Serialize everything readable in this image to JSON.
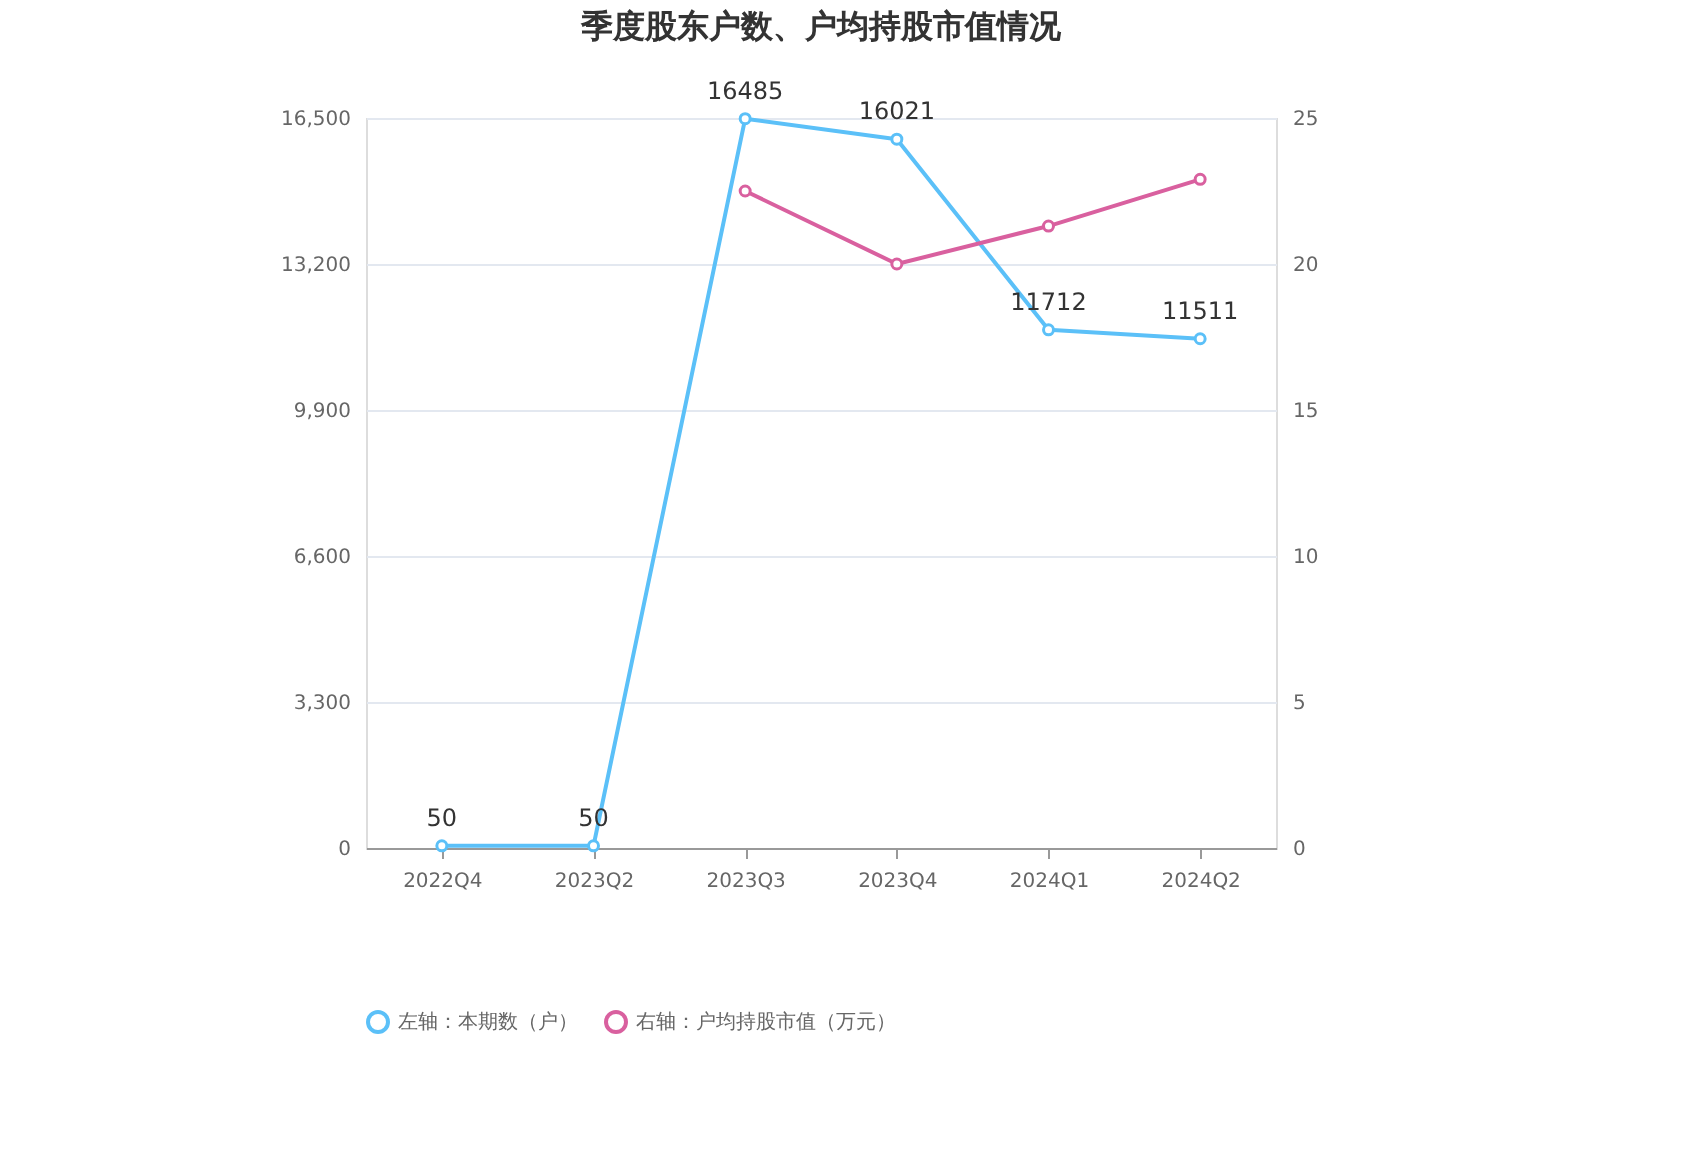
{
  "chart_data": {
    "type": "line",
    "title": "季度股东户数、户均持股市值情况",
    "categories": [
      "2022Q4",
      "2023Q2",
      "2023Q3",
      "2023Q4",
      "2024Q1",
      "2024Q2"
    ],
    "series": [
      {
        "name": "左轴：本期数（户）",
        "color": "#5bc0f8",
        "values": [
          50,
          50,
          16485,
          16021,
          11712,
          11511
        ],
        "value_labels": [
          "50",
          "50",
          "16485",
          "16021",
          "11712",
          "11511"
        ]
      },
      {
        "name": "右轴：户均持股市值（万元）",
        "color": "#d9609f",
        "axis": "y2",
        "values": [
          null,
          null,
          22.5,
          20.0,
          21.3,
          22.9
        ]
      }
    ],
    "ylim": [
      0,
      16500
    ],
    "yticks": [
      0,
      {
        "value": 3300,
        "label": "3,300"
      },
      {
        "value": 6600,
        "label": "6,600"
      },
      {
        "value": 9900,
        "label": "9,900"
      },
      {
        "value": 13200,
        "label": "13,200"
      },
      {
        "value": 16500,
        "label": "16,500"
      }
    ],
    "y2lim": [
      0,
      25
    ],
    "y2ticks": [
      0,
      5,
      10,
      15,
      20,
      25
    ],
    "grid": "y",
    "legend": "bottom",
    "marker": "circle",
    "line_style": "solid"
  }
}
